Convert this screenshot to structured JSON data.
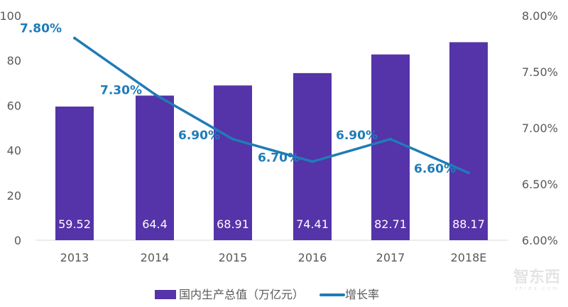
{
  "chart_data": {
    "type": "bar+line",
    "categories": [
      "2013",
      "2014",
      "2015",
      "2016",
      "2017",
      "2018E"
    ],
    "series": [
      {
        "name": "国内生产总值（万亿元）",
        "type": "bar",
        "axis": "left",
        "values": [
          59.52,
          64.4,
          68.91,
          74.41,
          82.71,
          88.17
        ],
        "labels": [
          "59.52",
          "64.4",
          "68.91",
          "74.41",
          "82.71",
          "88.17"
        ],
        "color": "#5533A8"
      },
      {
        "name": "增长率",
        "type": "line",
        "axis": "right",
        "values": [
          7.8,
          7.3,
          6.9,
          6.7,
          6.9,
          6.6
        ],
        "labels": [
          "7.80%",
          "7.30%",
          "6.90%",
          "6.70%",
          "6.90%",
          "6.60%"
        ],
        "color": "#1F7BB8"
      }
    ],
    "left_axis": {
      "ylim": [
        0,
        100
      ],
      "ticks": [
        "0",
        "20",
        "40",
        "60",
        "80",
        "100"
      ]
    },
    "right_axis": {
      "ylim": [
        6.0,
        8.0
      ],
      "ticks": [
        "6.00%",
        "6.50%",
        "7.00%",
        "7.50%",
        "8.00%"
      ]
    },
    "grid": false,
    "legend_placement": "bottom"
  },
  "watermark_logo": {
    "text": "智东西",
    "subtext": "zhidx.com"
  }
}
